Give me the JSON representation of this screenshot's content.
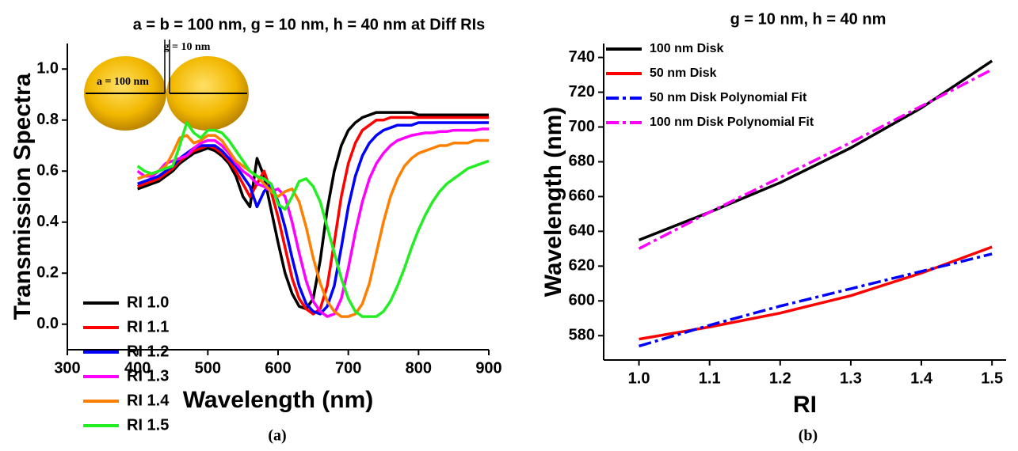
{
  "chart_data": [
    {
      "type": "line",
      "title": "a = b = 100 nm, g = 10 nm, h = 40 nm at Diff RIs",
      "x_label": "Wavelength (nm)",
      "y_label": "Transmission Spectra",
      "panel_label": "(a)",
      "annotations": [
        "g = 10 nm",
        "a = 100 nm"
      ],
      "xlim": [
        300,
        900
      ],
      "xticks": [
        300,
        400,
        500,
        600,
        700,
        800,
        900
      ],
      "ylim": [
        -0.1,
        1.1
      ],
      "yticks": [
        {
          "value": 0,
          "label": "0.0"
        },
        {
          "value": 0.2,
          "label": "0.2"
        },
        {
          "value": 0.4,
          "label": "0.4"
        },
        {
          "value": 0.6,
          "label": "0.6"
        },
        {
          "value": 0.8,
          "label": "0.8"
        },
        {
          "value": 1,
          "label": "1.0"
        }
      ],
      "legend": "lower left",
      "x": [
        400,
        410,
        420,
        430,
        440,
        450,
        460,
        470,
        480,
        490,
        500,
        510,
        520,
        530,
        540,
        550,
        560,
        570,
        580,
        590,
        600,
        610,
        620,
        630,
        640,
        650,
        660,
        670,
        680,
        690,
        700,
        710,
        720,
        730,
        740,
        750,
        760,
        770,
        780,
        790,
        800,
        810,
        820,
        830,
        840,
        850,
        860,
        870,
        880,
        890,
        900
      ],
      "series": [
        {
          "name": "RI 1.0",
          "color": "#000000",
          "values": [
            0.53,
            0.54,
            0.55,
            0.56,
            0.58,
            0.6,
            0.63,
            0.65,
            0.67,
            0.68,
            0.69,
            0.68,
            0.66,
            0.63,
            0.58,
            0.5,
            0.46,
            0.65,
            0.58,
            0.45,
            0.32,
            0.2,
            0.12,
            0.07,
            0.06,
            0.1,
            0.25,
            0.45,
            0.6,
            0.7,
            0.76,
            0.79,
            0.81,
            0.82,
            0.83,
            0.83,
            0.83,
            0.83,
            0.83,
            0.83,
            0.82,
            0.82,
            0.82,
            0.82,
            0.82,
            0.82,
            0.82,
            0.82,
            0.82,
            0.82,
            0.82
          ]
        },
        {
          "name": "RI 1.1",
          "color": "#ff0000",
          "values": [
            0.54,
            0.55,
            0.56,
            0.57,
            0.59,
            0.61,
            0.64,
            0.66,
            0.68,
            0.69,
            0.7,
            0.69,
            0.67,
            0.64,
            0.6,
            0.55,
            0.5,
            0.55,
            0.6,
            0.52,
            0.42,
            0.3,
            0.18,
            0.1,
            0.06,
            0.04,
            0.06,
            0.15,
            0.32,
            0.5,
            0.63,
            0.71,
            0.76,
            0.78,
            0.8,
            0.8,
            0.81,
            0.81,
            0.81,
            0.81,
            0.81,
            0.81,
            0.81,
            0.81,
            0.81,
            0.81,
            0.81,
            0.81,
            0.81,
            0.81,
            0.81
          ]
        },
        {
          "name": "RI 1.2",
          "color": "#0000ff",
          "values": [
            0.55,
            0.56,
            0.57,
            0.58,
            0.6,
            0.62,
            0.65,
            0.67,
            0.69,
            0.7,
            0.7,
            0.7,
            0.68,
            0.65,
            0.62,
            0.58,
            0.54,
            0.46,
            0.52,
            0.55,
            0.48,
            0.38,
            0.26,
            0.15,
            0.08,
            0.05,
            0.04,
            0.07,
            0.15,
            0.3,
            0.46,
            0.58,
            0.66,
            0.71,
            0.74,
            0.76,
            0.77,
            0.78,
            0.78,
            0.78,
            0.79,
            0.79,
            0.79,
            0.79,
            0.79,
            0.79,
            0.79,
            0.79,
            0.79,
            0.79,
            0.79
          ]
        },
        {
          "name": "RI 1.3",
          "color": "#ff00ff",
          "values": [
            0.6,
            0.58,
            0.58,
            0.6,
            0.63,
            0.64,
            0.65,
            0.66,
            0.69,
            0.71,
            0.72,
            0.72,
            0.7,
            0.67,
            0.63,
            0.6,
            0.58,
            0.55,
            0.54,
            0.52,
            0.53,
            0.5,
            0.4,
            0.28,
            0.17,
            0.09,
            0.05,
            0.03,
            0.04,
            0.1,
            0.22,
            0.36,
            0.48,
            0.57,
            0.63,
            0.67,
            0.7,
            0.72,
            0.73,
            0.74,
            0.745,
            0.75,
            0.75,
            0.755,
            0.755,
            0.76,
            0.76,
            0.76,
            0.76,
            0.765,
            0.765
          ]
        },
        {
          "name": "RI 1.4",
          "color": "#ff8000",
          "values": [
            0.57,
            0.58,
            0.59,
            0.6,
            0.62,
            0.67,
            0.73,
            0.74,
            0.71,
            0.72,
            0.74,
            0.74,
            0.72,
            0.68,
            0.64,
            0.62,
            0.6,
            0.58,
            0.55,
            0.52,
            0.5,
            0.52,
            0.53,
            0.48,
            0.38,
            0.26,
            0.16,
            0.09,
            0.05,
            0.03,
            0.03,
            0.04,
            0.08,
            0.16,
            0.28,
            0.4,
            0.5,
            0.57,
            0.62,
            0.65,
            0.67,
            0.68,
            0.69,
            0.7,
            0.7,
            0.71,
            0.71,
            0.71,
            0.72,
            0.72,
            0.72
          ]
        },
        {
          "name": "RI 1.5",
          "color": "#22ee22",
          "values": [
            0.62,
            0.6,
            0.59,
            0.6,
            0.61,
            0.62,
            0.7,
            0.79,
            0.75,
            0.73,
            0.76,
            0.76,
            0.75,
            0.72,
            0.68,
            0.64,
            0.6,
            0.58,
            0.57,
            0.55,
            0.47,
            0.45,
            0.5,
            0.56,
            0.57,
            0.54,
            0.48,
            0.38,
            0.28,
            0.18,
            0.1,
            0.05,
            0.03,
            0.03,
            0.03,
            0.05,
            0.09,
            0.15,
            0.22,
            0.3,
            0.37,
            0.43,
            0.48,
            0.52,
            0.55,
            0.57,
            0.59,
            0.61,
            0.62,
            0.63,
            0.64
          ]
        }
      ]
    },
    {
      "type": "line",
      "title": "g = 10 nm, h = 40 nm",
      "x_label": "RI",
      "y_label": "Wavelength (nm)",
      "panel_label": "(b)",
      "xlim": [
        0.95,
        1.52
      ],
      "xticks": [
        {
          "value": 1,
          "label": "1.0"
        },
        {
          "value": 1.1,
          "label": "1.1"
        },
        {
          "value": 1.2,
          "label": "1.2"
        },
        {
          "value": 1.3,
          "label": "1.3"
        },
        {
          "value": 1.4,
          "label": "1.4"
        },
        {
          "value": 1.5,
          "label": "1.5"
        }
      ],
      "ylim": [
        566,
        748
      ],
      "yticks": [
        580,
        600,
        620,
        640,
        660,
        680,
        700,
        720,
        740
      ],
      "legend": "upper left",
      "x": [
        1.0,
        1.1,
        1.2,
        1.3,
        1.4,
        1.5
      ],
      "series": [
        {
          "name": "100 nm Disk",
          "color": "#000000",
          "style": "solid",
          "values": [
            635,
            651,
            668,
            688,
            711,
            738
          ]
        },
        {
          "name": "50 nm Disk",
          "color": "#ff0000",
          "style": "solid",
          "values": [
            578,
            585,
            593,
            603,
            616,
            631
          ]
        },
        {
          "name": "50 nm Disk Polynomial Fit",
          "color": "#0000ff",
          "style": "dashdot",
          "values": [
            574,
            586,
            597,
            607,
            617,
            627
          ]
        },
        {
          "name": "100 nm Disk Polynomial Fit",
          "color": "#ff00ff",
          "style": "dashdot",
          "values": [
            630,
            651,
            671,
            691,
            712,
            733
          ]
        }
      ]
    }
  ]
}
